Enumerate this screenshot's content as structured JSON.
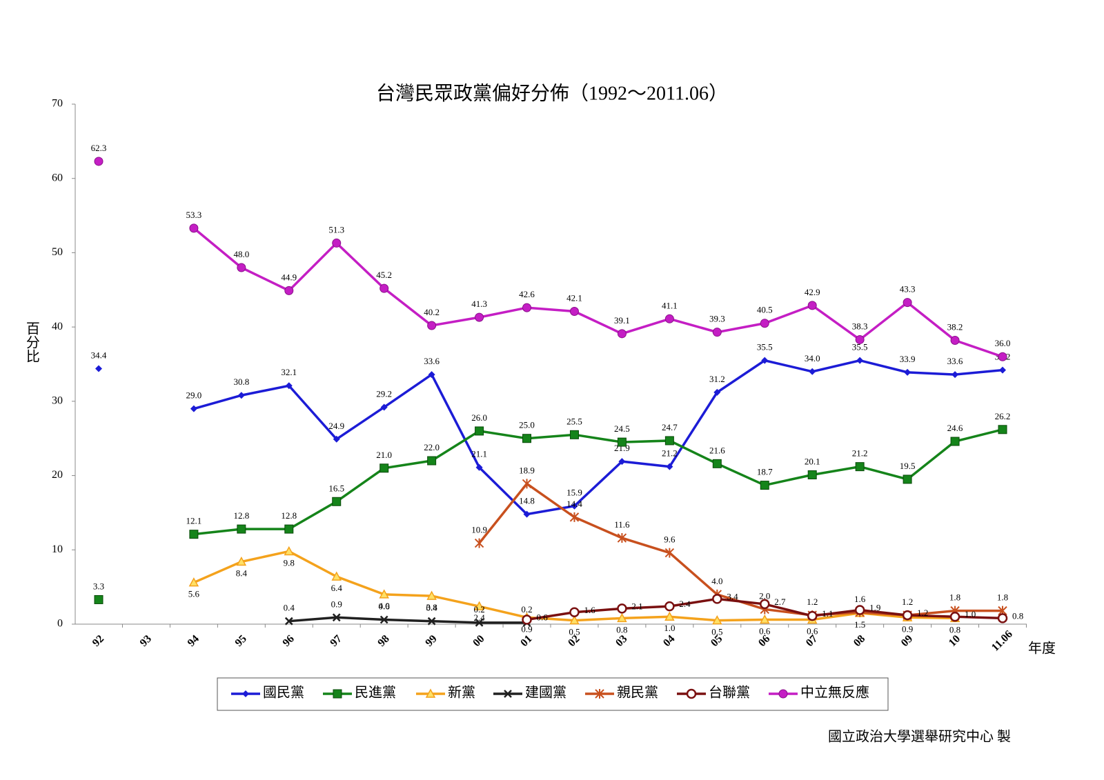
{
  "chart_data": {
    "type": "line",
    "title": "台灣民眾政黨偏好分佈（1992～2011.06）",
    "y_label": "百分比",
    "x_label": "年度",
    "source": "國立政治大學選舉研究中心 製",
    "categories": [
      "92",
      "93",
      "94",
      "95",
      "96",
      "97",
      "98",
      "99",
      "00",
      "01",
      "02",
      "03",
      "04",
      "05",
      "06",
      "07",
      "08",
      "09",
      "10",
      "11.06"
    ],
    "ylim": [
      0,
      70
    ],
    "yticks": [
      0,
      10,
      20,
      30,
      40,
      50,
      60,
      70
    ],
    "grid": false,
    "legend": "bottom",
    "series": [
      {
        "name": "國民黨",
        "color": "#1c1cd6",
        "values": [
          34.4,
          null,
          29,
          30.8,
          32.1,
          24.9,
          29.2,
          33.6,
          21.1,
          14.8,
          15.9,
          21.9,
          21.2,
          31.2,
          35.5,
          34,
          35.5,
          33.9,
          33.6,
          34.2
        ],
        "value_labels": [
          "34.4",
          null,
          "29.0",
          "30.8",
          "32.1",
          "24.9",
          "29.2",
          "33.6",
          "21.1",
          "14.8",
          "15.9",
          "21.9",
          "21.2",
          "31.2",
          "35.5",
          "34.0",
          "35.5",
          "33.9",
          "33.6",
          "34.2"
        ]
      },
      {
        "name": "民進黨",
        "color": "#15841a",
        "values": [
          3.3,
          null,
          12.1,
          12.8,
          12.8,
          16.5,
          21,
          22,
          26,
          25,
          25.5,
          24.5,
          24.7,
          21.6,
          18.7,
          20.1,
          21.2,
          19.5,
          24.6,
          26.2
        ],
        "value_labels": [
          "3.3",
          null,
          "12.1",
          "12.8",
          "12.8",
          "16.5",
          "21.0",
          "22.0",
          "26.0",
          "25.0",
          "25.5",
          "24.5",
          "24.7",
          "21.6",
          "18.7",
          "20.1",
          "21.2",
          "19.5",
          "24.6",
          "26.2"
        ]
      },
      {
        "name": "新黨",
        "color": "#f4a21c",
        "values": [
          null,
          null,
          5.6,
          8.4,
          9.8,
          6.4,
          4,
          3.8,
          2.4,
          0.9,
          0.5,
          0.8,
          1,
          0.5,
          0.6,
          0.6,
          1.5,
          0.9,
          0.8,
          null
        ],
        "value_labels": [
          null,
          null,
          "5.6",
          "8.4",
          "9.8",
          "6.4",
          "4.0",
          "3.8",
          "2.4",
          "0.9",
          "0.5",
          "0.8",
          "1.0",
          "0.5",
          "0.6",
          "0.6",
          "1.5",
          "0.9",
          "0.8",
          null
        ]
      },
      {
        "name": "建國黨",
        "color": "#202020",
        "values": [
          null,
          null,
          null,
          null,
          0.4,
          0.9,
          0.6,
          0.4,
          0.2,
          0.2,
          null,
          null,
          null,
          null,
          null,
          null,
          null,
          null,
          null,
          null
        ],
        "value_labels": [
          null,
          null,
          null,
          null,
          "0.4",
          "0.9",
          "0.6",
          "0.4",
          "0.2",
          "0.2",
          null,
          null,
          null,
          null,
          null,
          null,
          null,
          null,
          null,
          null
        ]
      },
      {
        "name": "親民黨",
        "color": "#c8501e",
        "values": [
          null,
          null,
          null,
          null,
          null,
          null,
          null,
          null,
          10.9,
          18.9,
          14.4,
          11.6,
          9.6,
          4,
          2,
          1.2,
          1.6,
          1.2,
          1.8,
          1.8
        ],
        "value_labels": [
          null,
          null,
          null,
          null,
          null,
          null,
          null,
          null,
          "10.9",
          "18.9",
          "14.4",
          "11.6",
          "9.6",
          "4.0",
          "2.0",
          "1.2",
          "1.6",
          "1.2",
          "1.8",
          "1.8"
        ]
      },
      {
        "name": "台聯黨",
        "color": "#7a1010",
        "values": [
          null,
          null,
          null,
          null,
          null,
          null,
          null,
          null,
          null,
          0.6,
          1.6,
          2.1,
          2.4,
          3.4,
          2.7,
          1.1,
          1.9,
          1.2,
          1,
          0.8
        ],
        "value_labels": [
          null,
          null,
          null,
          null,
          null,
          null,
          null,
          null,
          null,
          "0.6",
          "1.6",
          "2.1",
          "2.4",
          "3.4",
          "2.7",
          "1.1",
          "1.9",
          "1.2",
          "1.0",
          "0.8"
        ]
      },
      {
        "name": "中立無反應",
        "color": "#c41ec4",
        "values": [
          62.3,
          null,
          53.3,
          48,
          44.9,
          51.3,
          45.2,
          40.2,
          41.3,
          42.6,
          42.1,
          39.1,
          41.1,
          39.3,
          40.5,
          42.9,
          38.3,
          43.3,
          38.2,
          36
        ],
        "value_labels": [
          "62.3",
          null,
          "53.3",
          "48.0",
          "44.9",
          "51.3",
          "45.2",
          "40.2",
          "41.3",
          "42.6",
          "42.1",
          "39.1",
          "41.1",
          "39.3",
          "40.5",
          "42.9",
          "38.3",
          "43.3",
          "38.2",
          "36.0"
        ]
      }
    ]
  }
}
